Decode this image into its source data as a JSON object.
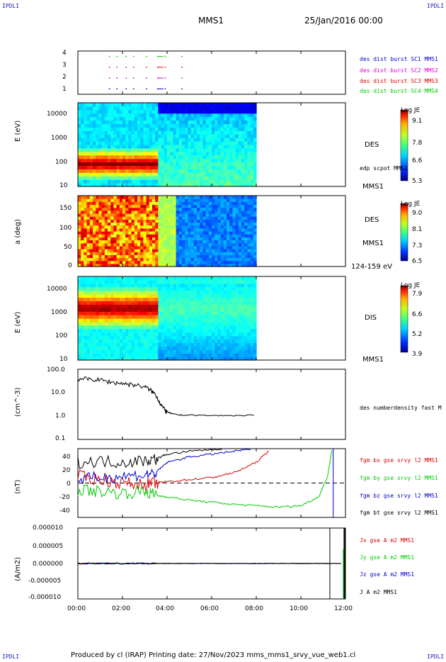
{
  "corner": {
    "tl": "IPDLI",
    "tr": "IPDLI",
    "bl": "IPDLI",
    "br": "IPDLI"
  },
  "header": {
    "mission": "MMS1",
    "date": "25/Jan/2016 00:00"
  },
  "footer": {
    "text": "Produced by cl (IRAP)   Printing date: 27/Nov/2023   mms_mms1_srvy_vue_web1.cl"
  },
  "time_axis": {
    "ticks": [
      "00:00",
      "02:00",
      "04:00",
      "06:00",
      "08:00",
      "10:00",
      "12:00"
    ]
  },
  "colors": {
    "blue": "#0000cc",
    "magenta": "#dd00dd",
    "red": "#dd0000",
    "green": "#00cc00",
    "black": "#000000"
  },
  "chart_data": [
    {
      "type": "scatter",
      "panel": "burst",
      "yticks": [
        "4",
        "3",
        "2",
        "1"
      ],
      "ylim": [
        0.5,
        4.5
      ],
      "series": [
        {
          "name": "des dist burst SC1 MMS1",
          "y": 1,
          "x": [
            "01:25",
            "01:45",
            "02:10",
            "02:30",
            "03:05",
            "03:35",
            "03:55",
            "04:40"
          ]
        },
        {
          "name": "des dist burst SC2 MMS2",
          "y": 2,
          "x": [
            "01:25",
            "01:45",
            "02:10",
            "02:30",
            "03:05",
            "03:35",
            "03:55",
            "04:40"
          ]
        },
        {
          "name": "des dist burst SC3 MMS3",
          "y": 3,
          "x": [
            "01:25",
            "01:45",
            "02:10",
            "02:30",
            "03:05",
            "03:35",
            "03:55",
            "04:40"
          ]
        },
        {
          "name": "des dist burst SC4 MMS4",
          "y": 4,
          "x": [
            "01:25",
            "01:45",
            "02:10",
            "02:30",
            "03:05",
            "03:35",
            "03:55",
            "04:40"
          ]
        }
      ]
    },
    {
      "type": "heatmap",
      "panel": "des_energy",
      "ylabel": "E (eV)",
      "yscale": "log",
      "yticks": [
        "10000",
        "1000",
        "100",
        "10"
      ],
      "label": "DES",
      "overlay": "edp scpot MMS1",
      "sc": "MMS1",
      "colorbar": {
        "title": "Log JE",
        "ticks": [
          "9.1",
          "7.8",
          "6.6",
          "5.3"
        ],
        "range": [
          5.3,
          9.1
        ]
      },
      "data_end": "08:00"
    },
    {
      "type": "heatmap",
      "panel": "des_pitch",
      "ylabel": "a (deg)",
      "yticks": [
        "150",
        "100",
        "50",
        "0"
      ],
      "ylim": [
        0,
        180
      ],
      "label": "DES",
      "sc": "MMS1",
      "energy_range": "124-159 eV",
      "colorbar": {
        "title": "Log JE",
        "ticks": [
          "9.0",
          "8.1",
          "7.3",
          "6.5"
        ],
        "range": [
          6.5,
          9.0
        ]
      },
      "data_end": "08:00"
    },
    {
      "type": "heatmap",
      "panel": "dis_energy",
      "ylabel": "E (eV)",
      "yscale": "log",
      "yticks": [
        "10000",
        "1000",
        "100",
        "10"
      ],
      "label": "DIS",
      "sc": "MMS1",
      "colorbar": {
        "title": "Log JE",
        "ticks": [
          "7.9",
          "6.6",
          "5.2",
          "3.9"
        ],
        "range": [
          3.9,
          7.9
        ]
      },
      "data_end": "08:00"
    },
    {
      "type": "line",
      "panel": "density",
      "ylabel": "(cm^-3)",
      "yscale": "log",
      "yticks": [
        "100.0",
        "10.0",
        "1.0",
        "0.1"
      ],
      "ylim": [
        0.1,
        100
      ],
      "series": [
        {
          "name": "des numberdensity fast M",
          "x": [
            0.0,
            0.5,
            1.0,
            1.5,
            2.0,
            2.5,
            3.0,
            3.3,
            3.5,
            3.7,
            3.9,
            4.0,
            4.3,
            4.6,
            5.0,
            6.0,
            7.0,
            8.0
          ],
          "y": [
            40,
            38,
            35,
            28,
            25,
            22,
            18,
            12,
            8,
            3.5,
            1.8,
            1.5,
            1.2,
            1.1,
            1.1,
            1.05,
            1.05,
            1.1
          ]
        }
      ]
    },
    {
      "type": "line",
      "panel": "bfield",
      "ylabel": "(nT)",
      "yticks": [
        "40",
        "20",
        "0",
        "-20",
        "-40"
      ],
      "ylim": [
        -50,
        50
      ],
      "series": [
        {
          "name": "fgm bx gse srvy l2 MMS1",
          "color": "#dd0000",
          "x": [
            0,
            1,
            2,
            3,
            3.5,
            4,
            5,
            6,
            7,
            8,
            8.6
          ],
          "y": [
            10,
            5,
            0,
            -2,
            0,
            2,
            5,
            8,
            15,
            30,
            48
          ]
        },
        {
          "name": "fgm by gse srvy l2 MMS1",
          "color": "#00cc00",
          "x": [
            0,
            1,
            2,
            3,
            3.5,
            4,
            5,
            6,
            7,
            8,
            9,
            10,
            10.8,
            11.2,
            11.4
          ],
          "y": [
            -10,
            -12,
            -15,
            -12,
            -18,
            -20,
            -25,
            -28,
            -31,
            -33,
            -35,
            -33,
            -20,
            10,
            50
          ]
        },
        {
          "name": "fgm bz gse srvy l2 MMS1",
          "color": "#0000cc",
          "x": [
            0,
            1,
            2,
            3,
            3.5,
            4,
            5,
            6,
            7,
            7.8
          ],
          "y": [
            5,
            8,
            10,
            12,
            15,
            30,
            38,
            42,
            46,
            50
          ]
        },
        {
          "name": "fgm bt gse srvy l2 MMS1",
          "color": "#000000",
          "x": [
            0,
            1,
            2,
            3,
            3.5,
            4,
            5,
            6,
            6.5
          ],
          "y": [
            30,
            32,
            30,
            33,
            35,
            42,
            46,
            49,
            50
          ]
        }
      ]
    },
    {
      "type": "line",
      "panel": "current",
      "ylabel": "(A/m2)",
      "yticks": [
        "0.000010",
        "0.000005",
        "0.000000",
        "-0.000005",
        "-0.000010"
      ],
      "ylim": [
        -1e-05,
        1e-05
      ],
      "series": [
        {
          "name": "Jx gse A m2 MMS1",
          "color": "#dd0000"
        },
        {
          "name": "Jy gse A m2 MMS1",
          "color": "#00cc00"
        },
        {
          "name": "Jz gse A m2 MMS1",
          "color": "#0000cc"
        },
        {
          "name": "J A m2 MMS1",
          "color": "#000000"
        }
      ]
    }
  ]
}
